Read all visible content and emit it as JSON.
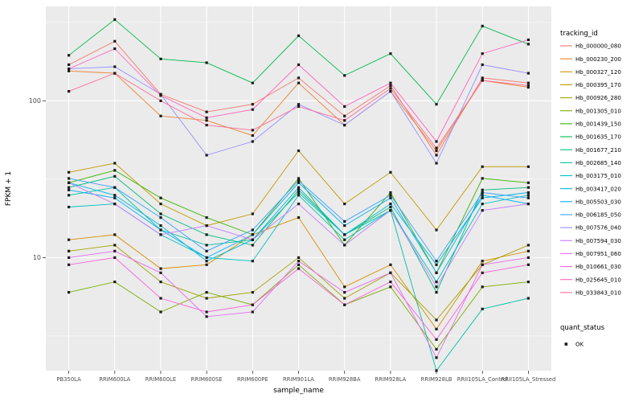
{
  "chart_data": {
    "type": "line",
    "title": "",
    "xlabel": "sample_name",
    "ylabel": "FPKM + 1",
    "y_scale": "log10",
    "ylim": [
      1.9,
      400
    ],
    "yticks": [
      10,
      100
    ],
    "y_minor": [
      3.1623,
      31.623,
      316.23
    ],
    "panel_bg": "#EBEBEB",
    "grid_color": "#FFFFFF",
    "point_color": "#1b1b1b",
    "tick_label_color": "#4D4D4D",
    "categories": [
      "PB350LA",
      "RRIM600LA",
      "RRIM600LE",
      "RRIM600SE",
      "RRIM600PE",
      "RRIM901LA",
      "RRIM928BA",
      "RRIM928LA",
      "RRIM928LB",
      "RRII105LA_Control",
      "RRII105LA_Stressed"
    ],
    "legend": {
      "color_title": "tracking_id",
      "shape_title": "quant_status",
      "shape_items": [
        "OK"
      ]
    },
    "series": [
      {
        "name": "Hb_000000_080",
        "color": "#F8766D",
        "values": [
          170,
          240,
          110,
          85,
          95,
          140,
          80,
          125,
          45,
          140,
          130
        ]
      },
      {
        "name": "Hb_000230_200",
        "color": "#EA8331",
        "values": [
          155,
          150,
          80,
          75,
          60,
          130,
          70,
          115,
          48,
          135,
          122
        ]
      },
      {
        "name": "Hb_000327_120",
        "color": "#D89000",
        "values": [
          13,
          14,
          8.5,
          9,
          14,
          18,
          6.5,
          9,
          3.5,
          9.5,
          11
        ]
      },
      {
        "name": "Hb_000395_170",
        "color": "#C09B00",
        "values": [
          35,
          40,
          22,
          16,
          19,
          48,
          22,
          35,
          15,
          38,
          38
        ]
      },
      {
        "name": "Hb_000926_280",
        "color": "#A3A500",
        "values": [
          11,
          12,
          7,
          5.5,
          6,
          10,
          5.5,
          8,
          4,
          9,
          12
        ]
      },
      {
        "name": "Hb_001305_010",
        "color": "#7CAE00",
        "values": [
          6,
          7,
          4.5,
          6,
          5,
          9,
          5,
          6.5,
          2.6,
          6.5,
          7
        ]
      },
      {
        "name": "Hb_001439_150",
        "color": "#39B600",
        "values": [
          30,
          36,
          24,
          18,
          14,
          32,
          12,
          26,
          8,
          32,
          30
        ]
      },
      {
        "name": "Hb_001635_170",
        "color": "#00BB4E",
        "values": [
          195,
          330,
          185,
          175,
          130,
          260,
          145,
          200,
          95,
          300,
          230
        ]
      },
      {
        "name": "Hb_001677_210",
        "color": "#00BF7D",
        "values": [
          28,
          33,
          19,
          14,
          12,
          27,
          14,
          21,
          6,
          27,
          28
        ]
      },
      {
        "name": "Hb_002685_140",
        "color": "#00C1A3",
        "values": [
          25,
          28,
          15,
          12,
          13,
          26,
          14,
          20,
          1.9,
          4.7,
          5.5
        ]
      },
      {
        "name": "Hb_003175_010",
        "color": "#00BFC4",
        "values": [
          21,
          22,
          14,
          10,
          9.5,
          25,
          13,
          20,
          7,
          22,
          25
        ]
      },
      {
        "name": "Hb_003417_020",
        "color": "#00BAE0",
        "values": [
          30,
          25,
          16,
          9.5,
          13,
          28,
          14,
          22,
          9,
          24,
          26
        ]
      },
      {
        "name": "Hb_005503_030",
        "color": "#00B0F6",
        "values": [
          27,
          24,
          15,
          10,
          14,
          30,
          16,
          24,
          8,
          25,
          22
        ]
      },
      {
        "name": "Hb_006185_050",
        "color": "#35A2FF",
        "values": [
          32,
          28,
          18,
          11,
          15,
          31,
          17,
          25,
          9.5,
          26,
          24
        ]
      },
      {
        "name": "Hb_007576_040",
        "color": "#9590FF",
        "values": [
          160,
          165,
          110,
          45,
          55,
          95,
          70,
          115,
          40,
          170,
          150
        ]
      },
      {
        "name": "Hb_007594_030",
        "color": "#C77CFF",
        "values": [
          30,
          22,
          14,
          16,
          13,
          22,
          12,
          20,
          6.5,
          20,
          22
        ]
      },
      {
        "name": "Hb_007951_060",
        "color": "#E76BF3",
        "values": [
          10,
          11,
          8,
          4.2,
          4.5,
          9.5,
          6,
          8,
          2.3,
          9,
          10
        ]
      },
      {
        "name": "Hb_010661_030",
        "color": "#FA62DB",
        "values": [
          9,
          10,
          5.5,
          4.5,
          5,
          8.5,
          5,
          7,
          3,
          8,
          9
        ]
      },
      {
        "name": "Hb_025645_010",
        "color": "#FF62BC",
        "values": [
          160,
          215,
          108,
          78,
          88,
          170,
          92,
          130,
          55,
          200,
          245
        ]
      },
      {
        "name": "Hb_033843_010",
        "color": "#FF6A98",
        "values": [
          115,
          150,
          100,
          70,
          65,
          92,
          75,
          120,
          50,
          135,
          125
        ]
      }
    ]
  }
}
